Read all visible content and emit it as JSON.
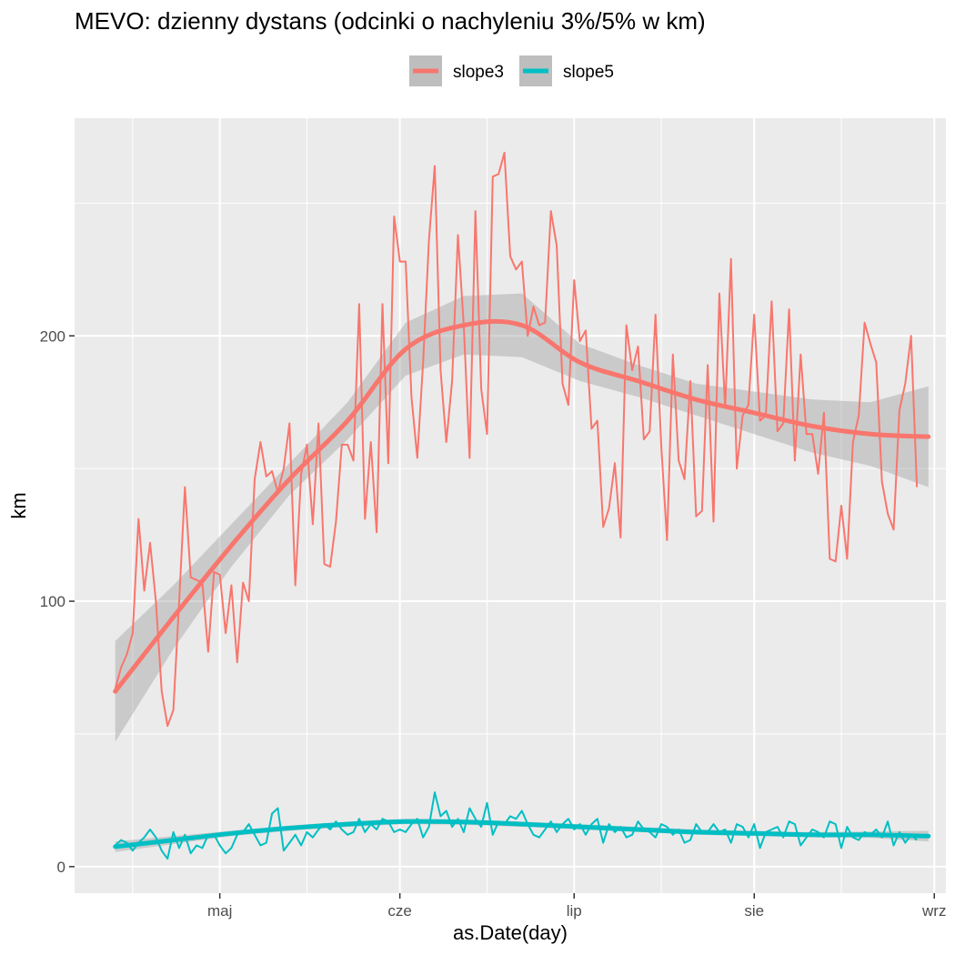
{
  "chart_data": {
    "type": "line",
    "title": "MEVO: dzienny dystans (odcinki o nachyleniu 3%/5% w km)",
    "xlabel": "as.Date(day)",
    "ylabel": "km",
    "xlim": [
      "2019-04-06",
      "2019-09-03"
    ],
    "ylim": [
      -10,
      282
    ],
    "x_ticks": [
      {
        "date": "2019-05-01",
        "label": "maj"
      },
      {
        "date": "2019-06-01",
        "label": "cze"
      },
      {
        "date": "2019-07-01",
        "label": "lip"
      },
      {
        "date": "2019-08-01",
        "label": "sie"
      },
      {
        "date": "2019-09-01",
        "label": "wrz"
      }
    ],
    "y_ticks": [
      0,
      100,
      200
    ],
    "y_minor_ticks": [
      50,
      150,
      250
    ],
    "x_minor_ticks": [
      "2019-04-16",
      "2019-05-16",
      "2019-06-16",
      "2019-07-16",
      "2019-08-16"
    ],
    "grid": true,
    "background": "#EBEBEB",
    "legend_position": "top",
    "legend_background": "#BEBEBE",
    "series": [
      {
        "name": "slope3",
        "color": "#F8766D",
        "start_date": "2019-04-13",
        "values": [
          67,
          75,
          80,
          88,
          131,
          104,
          122,
          100,
          66,
          53,
          59,
          100,
          143,
          109,
          108,
          107,
          81,
          111,
          110,
          88,
          106,
          77,
          107,
          100,
          146,
          160,
          147,
          149,
          141,
          150,
          167,
          106,
          148,
          159,
          129,
          167,
          114,
          113,
          130,
          159,
          159,
          153,
          212,
          131,
          160,
          126,
          212,
          152,
          245,
          228,
          228,
          177,
          154,
          190,
          236,
          264,
          187,
          160,
          183,
          238,
          204,
          154,
          247,
          180,
          163,
          260,
          261,
          269,
          230,
          225,
          228,
          200,
          211,
          204,
          205,
          247,
          234,
          182,
          174,
          221,
          198,
          202,
          165,
          168,
          128,
          135,
          152,
          124,
          204,
          187,
          196,
          161,
          164,
          208,
          158,
          123,
          193,
          153,
          146,
          183,
          132,
          134,
          189,
          130,
          216,
          173,
          229,
          150,
          170,
          174,
          208,
          168,
          170,
          213,
          164,
          167,
          210,
          153,
          193,
          163,
          163,
          148,
          171,
          116,
          115,
          136,
          116,
          160,
          170,
          205,
          197,
          190,
          145,
          133,
          127,
          172,
          182,
          200,
          143
        ]
      },
      {
        "name": "slope5",
        "color": "#00BFC4",
        "start_date": "2019-04-13",
        "values": [
          8,
          10,
          9,
          6,
          9,
          11,
          14,
          11,
          6,
          3,
          13,
          7,
          12,
          5,
          8,
          7,
          12,
          12,
          8,
          5,
          7,
          12,
          13,
          16,
          12,
          8,
          9,
          20,
          22,
          6,
          9,
          12,
          8,
          13,
          11,
          14,
          16,
          14,
          17,
          14,
          12,
          13,
          18,
          13,
          16,
          14,
          18,
          17,
          13,
          14,
          13,
          16,
          18,
          11,
          15,
          28,
          19,
          21,
          15,
          18,
          13,
          22,
          18,
          15,
          24,
          12,
          17,
          16,
          19,
          18,
          21,
          16,
          12,
          11,
          14,
          17,
          13,
          16,
          18,
          14,
          16,
          12,
          16,
          18,
          9,
          16,
          13,
          15,
          11,
          12,
          17,
          14,
          13,
          11,
          16,
          15,
          12,
          14,
          9,
          10,
          16,
          13,
          13,
          16,
          13,
          14,
          9,
          16,
          15,
          11,
          16,
          7,
          13,
          14,
          15,
          11,
          17,
          16,
          8,
          11,
          14,
          13,
          11,
          17,
          16,
          7,
          15,
          11,
          10,
          13,
          12,
          14,
          11,
          17,
          8,
          13,
          9,
          12,
          10
        ]
      }
    ],
    "smooth": [
      {
        "name": "slope3",
        "color": "#F8766D",
        "x": [
          "2019-04-13",
          "2019-04-23",
          "2019-05-03",
          "2019-05-13",
          "2019-05-23",
          "2019-06-02",
          "2019-06-12",
          "2019-06-22",
          "2019-07-02",
          "2019-07-12",
          "2019-07-22",
          "2019-08-01",
          "2019-08-11",
          "2019-08-21",
          "2019-08-31"
        ],
        "y": [
          66,
          94,
          121,
          146,
          168,
          195,
          204,
          204,
          190,
          183,
          176,
          171,
          166,
          163,
          162
        ],
        "lower": [
          47,
          82,
          113,
          140,
          161,
          185,
          193,
          192,
          183,
          177,
          170,
          163,
          156,
          151,
          143
        ],
        "upper": [
          85,
          106,
          129,
          152,
          175,
          205,
          215,
          216,
          197,
          189,
          182,
          179,
          176,
          175,
          181
        ]
      },
      {
        "name": "slope5",
        "color": "#00BFC4",
        "x": [
          "2019-04-13",
          "2019-04-23",
          "2019-05-03",
          "2019-05-13",
          "2019-05-23",
          "2019-06-02",
          "2019-06-12",
          "2019-06-22",
          "2019-07-02",
          "2019-07-12",
          "2019-07-22",
          "2019-08-01",
          "2019-08-11",
          "2019-08-21",
          "2019-08-31"
        ],
        "y": [
          7.5,
          10,
          12.5,
          14.5,
          16,
          17,
          16.8,
          16,
          15,
          14,
          13,
          12.5,
          12,
          12,
          11.5
        ],
        "lower": [
          5.5,
          8.5,
          11.5,
          13.5,
          15,
          16,
          15.8,
          15,
          14,
          13,
          12,
          11.5,
          11,
          10.8,
          9.5
        ],
        "upper": [
          9.5,
          11.5,
          13.5,
          15.5,
          17,
          18,
          17.8,
          17,
          16,
          15,
          14,
          13.5,
          13,
          13.2,
          13.5
        ]
      }
    ]
  }
}
